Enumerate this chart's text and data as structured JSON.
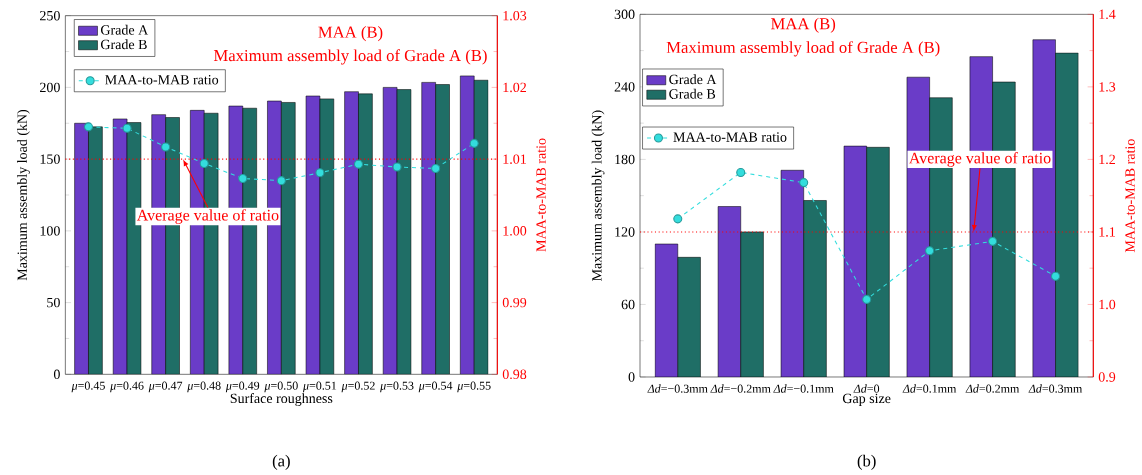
{
  "chart_data": [
    {
      "type": "bar",
      "title": "(a)",
      "xlabel": "Surface roughness",
      "ylabel": "Maximum assembly load (kN)",
      "y2label": "MAA-to-MAB ratio",
      "annotations": [
        "MAA (B)",
        "Maximum assembly load of Grade A (B)"
      ],
      "categories": [
        "*μ*=0.45",
        "*μ*=0.46",
        "*μ*=0.47",
        "*μ*=0.48",
        "*μ*=0.49",
        "*μ*=0.50",
        "*μ*=0.51",
        "*μ*=0.52",
        "*μ*=0.53",
        "*μ*=0.54",
        "*μ*=0.55"
      ],
      "series": [
        {
          "name": "Grade A",
          "color": "#6a3cc8",
          "values": [
            175,
            178,
            181,
            184,
            187,
            190.5,
            194,
            197,
            200,
            203.5,
            208
          ]
        },
        {
          "name": "Grade B",
          "color": "#1f6e66",
          "values": [
            172.5,
            175.5,
            179,
            182,
            185.5,
            189.5,
            192,
            195.5,
            198.5,
            202,
            205
          ]
        },
        {
          "name": "MAA-to-MAB ratio",
          "type": "line",
          "axis": "y2",
          "color": "#33dddd",
          "marker": "circle",
          "line_style": "dashed",
          "values": [
            1.0145,
            1.0143,
            1.0117,
            1.0094,
            1.0073,
            1.007,
            1.0081,
            1.0093,
            1.0089,
            1.0087,
            1.0122
          ]
        }
      ],
      "ylim": [
        0,
        250
      ],
      "yticks": [
        0,
        50,
        100,
        150,
        200,
        250
      ],
      "y2lim": [
        0.98,
        1.03
      ],
      "y2ticks": [
        0.98,
        0.99,
        {
          "value": 1,
          "label": "1.00"
        },
        1.01,
        1.02,
        1.03
      ],
      "ref_lines": [
        {
          "axis": "y2",
          "value": 1.01,
          "label": "Average value of ratio",
          "color": "#ff0000",
          "line_style": "dotted"
        }
      ],
      "legend": "top left"
    },
    {
      "type": "bar",
      "title": "(b)",
      "xlabel": "Gap size",
      "ylabel": "Maximum assembly load (kN)",
      "y2label": "MAA-to-MAB ratio",
      "annotations": [
        "MAA (B)",
        "Maximum assembly load of Grade A (B)"
      ],
      "categories": [
        "*Δd*=−0.3mm",
        "*Δd*=−0.2mm",
        "*Δd*=−0.1mm",
        "*Δd*=0",
        "*Δd*=0.1mm",
        "*Δd*=0.2mm",
        "*Δd*=0.3mm"
      ],
      "series": [
        {
          "name": "Grade A",
          "color": "#6a3cc8",
          "values": [
            110,
            141,
            171,
            191,
            248,
            265,
            279
          ]
        },
        {
          "name": "Grade B",
          "color": "#1f6e66",
          "values": [
            99,
            120,
            146,
            190,
            231,
            244,
            268
          ]
        },
        {
          "name": "MAA-to-MAB ratio",
          "type": "line",
          "axis": "y2",
          "color": "#33dddd",
          "marker": "circle",
          "line_style": "dashed",
          "values": [
            1.118,
            1.182,
            1.168,
            1.007,
            1.074,
            1.087,
            1.039
          ]
        }
      ],
      "ylim": [
        0,
        300
      ],
      "yticks": [
        0,
        60,
        120,
        180,
        240,
        300
      ],
      "y2lim": [
        0.9,
        1.4
      ],
      "y2ticks": [
        0.9,
        {
          "value": 1,
          "label": "1.0"
        },
        1.1,
        1.2,
        1.3,
        1.4
      ],
      "ref_lines": [
        {
          "axis": "y2",
          "value": 1.1,
          "label": "Average value of ratio",
          "color": "#ff0000",
          "line_style": "dotted"
        }
      ],
      "legend": "top left"
    }
  ]
}
